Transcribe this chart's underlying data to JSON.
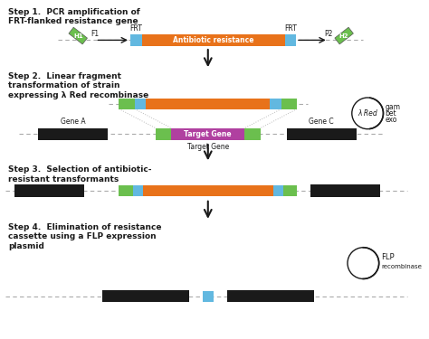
{
  "step1_title": "Step 1.  PCR amplification of\nFRT-flanked resistance gene",
  "step2_title": "Step 2.  Linear fragment\ntransformation of strain\nexpressing λ Red recombinase",
  "step3_title": "Step 3.  Selection of antibiotic-\nresistant transformants",
  "step4_title": "Step 4.  Elimination of resistance\ncassette using a FLP expression\nplasmid",
  "orange": "#E8721A",
  "blue": "#62B8E0",
  "green": "#6BBF4E",
  "black": "#1A1A1A",
  "purple": "#B040A0",
  "gray_line": "#AAAAAA",
  "white": "#FFFFFF"
}
